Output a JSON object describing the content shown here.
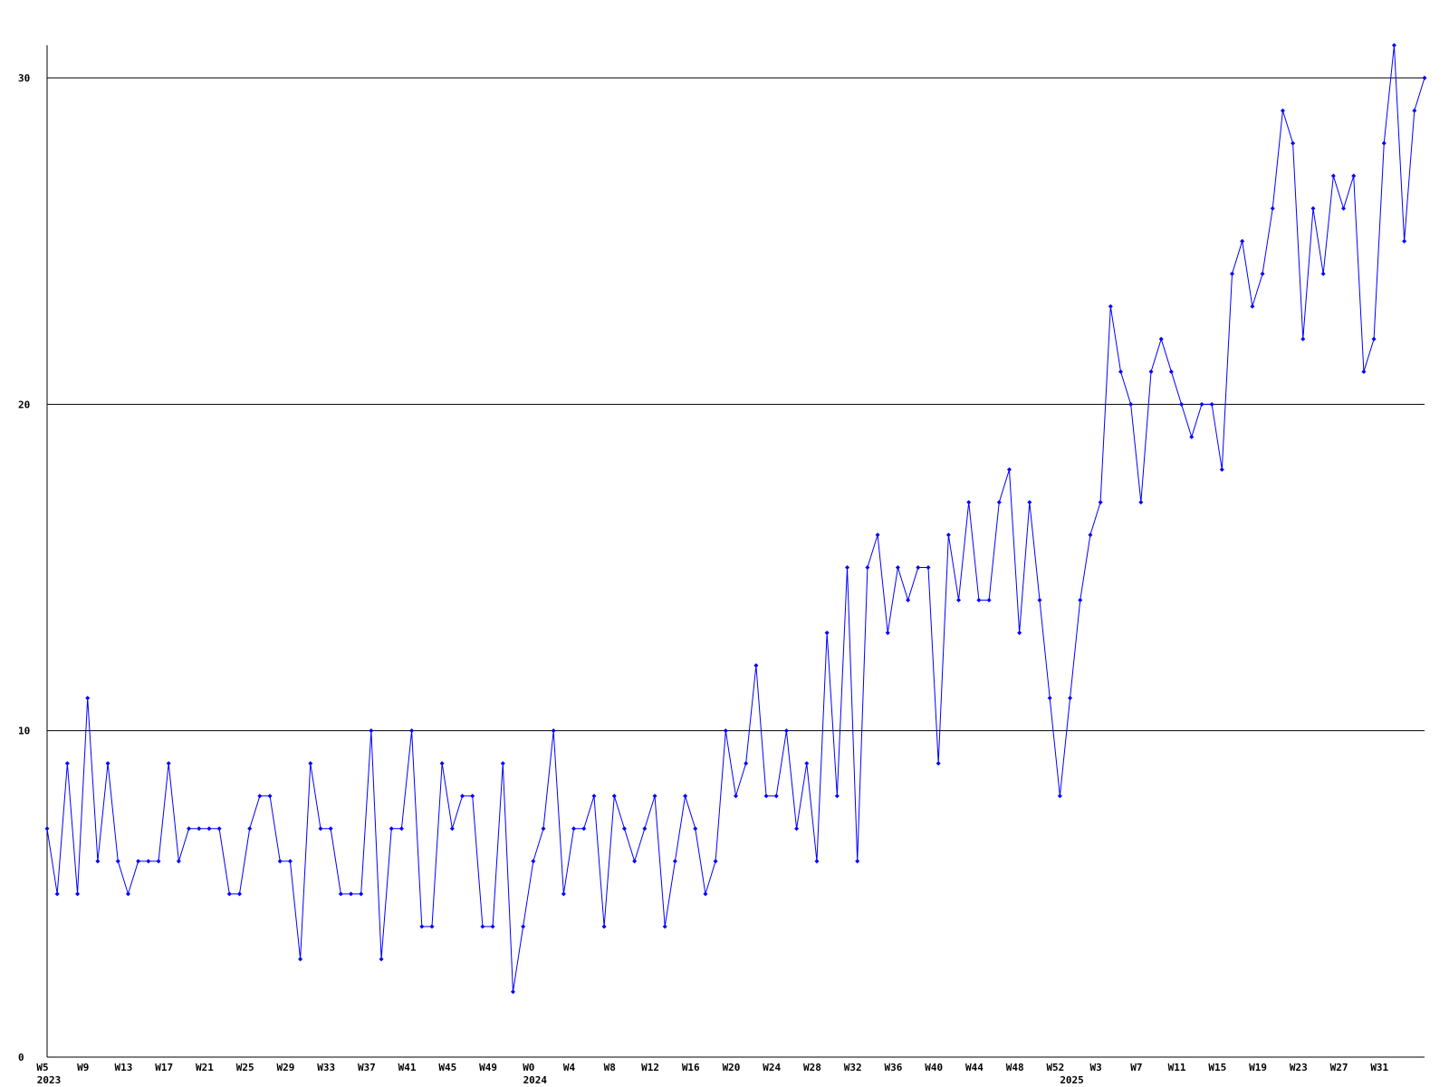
{
  "chart_data": {
    "type": "line",
    "categories": [
      "W5",
      null,
      null,
      null,
      "W9",
      null,
      null,
      null,
      "W13",
      null,
      null,
      null,
      "W17",
      null,
      null,
      null,
      "W21",
      null,
      null,
      null,
      "W25",
      null,
      null,
      null,
      "W29",
      null,
      null,
      null,
      "W33",
      null,
      null,
      null,
      "W37",
      null,
      null,
      null,
      "W41",
      null,
      null,
      null,
      "W45",
      null,
      null,
      null,
      "W49",
      null,
      null,
      null,
      "W0",
      null,
      null,
      null,
      "W4",
      null,
      null,
      null,
      "W8",
      null,
      null,
      null,
      "W12",
      null,
      null,
      null,
      "W16",
      null,
      null,
      null,
      "W20",
      null,
      null,
      null,
      "W24",
      null,
      null,
      null,
      "W28",
      null,
      null,
      null,
      "W32",
      null,
      null,
      null,
      "W36",
      null,
      null,
      null,
      "W40",
      null,
      null,
      null,
      "W44",
      null,
      null,
      null,
      "W48",
      null,
      null,
      null,
      "W52",
      null,
      null,
      null,
      "W3",
      null,
      null,
      null,
      "W7",
      null,
      null,
      null,
      "W11",
      null,
      null,
      null,
      "W15",
      null,
      null,
      null,
      "W19",
      null,
      null,
      null,
      "W23",
      null,
      null,
      null,
      "W27",
      null,
      null,
      null,
      "W31",
      null,
      null,
      null,
      null
    ],
    "year_labels": [
      "2023",
      null,
      null,
      null,
      null,
      null,
      null,
      null,
      null,
      null,
      null,
      null,
      null,
      null,
      null,
      null,
      null,
      null,
      null,
      null,
      null,
      null,
      null,
      null,
      null,
      null,
      null,
      null,
      null,
      null,
      null,
      null,
      null,
      null,
      null,
      null,
      null,
      null,
      null,
      null,
      null,
      null,
      null,
      null,
      null,
      null,
      null,
      null,
      "2024",
      null,
      null,
      null,
      null,
      null,
      null,
      null,
      null,
      null,
      null,
      null,
      null,
      null,
      null,
      null,
      null,
      null,
      null,
      null,
      null,
      null,
      null,
      null,
      null,
      null,
      null,
      null,
      null,
      null,
      null,
      null,
      null,
      null,
      null,
      null,
      null,
      null,
      null,
      null,
      null,
      null,
      null,
      null,
      null,
      null,
      null,
      null,
      null,
      null,
      null,
      null,
      null,
      "2025",
      null,
      null,
      null,
      null,
      null,
      null,
      null,
      null,
      null,
      null,
      null,
      null,
      null,
      null,
      null,
      null,
      null,
      null,
      null,
      null,
      null,
      null,
      null,
      null,
      null,
      null,
      null,
      null,
      null,
      null,
      null,
      null,
      null,
      null,
      null
    ],
    "series": [
      {
        "color": "#0000ff",
        "values": [
          7,
          5,
          9,
          5,
          11,
          6,
          9,
          6,
          5,
          6,
          6,
          6,
          9,
          6,
          7,
          7,
          7,
          7,
          5,
          5,
          7,
          8,
          8,
          6,
          6,
          3,
          9,
          7,
          7,
          5,
          5,
          5,
          10,
          3,
          7,
          7,
          10,
          4,
          4,
          9,
          7,
          8,
          8,
          4,
          4,
          9,
          2,
          4,
          6,
          7,
          10,
          5,
          7,
          7,
          8,
          4,
          8,
          7,
          6,
          7,
          8,
          4,
          6,
          8,
          7,
          5,
          6,
          10,
          8,
          9,
          12,
          8,
          8,
          10,
          7,
          9,
          6,
          13,
          8,
          15,
          6,
          15,
          16,
          13,
          15,
          14,
          15,
          15,
          9,
          16,
          14,
          17,
          14,
          14,
          17,
          18,
          13,
          17,
          14,
          11,
          8,
          11,
          14,
          16,
          17,
          23,
          21,
          20,
          17,
          21,
          22,
          21,
          20,
          19,
          20,
          20,
          18,
          24,
          25,
          23,
          24,
          26,
          29,
          28,
          22,
          26,
          24,
          27,
          26,
          27,
          21,
          22,
          28,
          31,
          25,
          29,
          30
        ]
      }
    ],
    "ylim": [
      0,
      31
    ],
    "yticks": [
      0,
      10,
      20,
      30
    ],
    "grid": true
  }
}
